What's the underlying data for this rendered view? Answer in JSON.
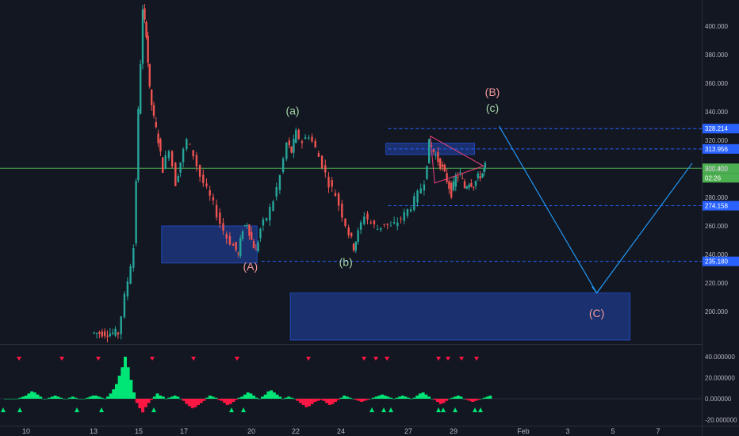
{
  "chart_data": [
    {
      "type": "candlestick",
      "title": "",
      "xlabel": "",
      "ylabel": "",
      "ylim": [
        180,
        415
      ],
      "x_ticks": [
        "10",
        "13",
        "15",
        "17",
        "20",
        "22",
        "24",
        "27",
        "29",
        "Feb",
        "3",
        "5",
        "7"
      ],
      "y_ticks": [
        "200.000",
        "220.000",
        "240.000",
        "260.000",
        "280.000",
        "300.000",
        "320.000",
        "340.000",
        "360.000",
        "380.000",
        "400.000"
      ],
      "price_path": [
        {
          "x": 0,
          "y": 0
        },
        {
          "x": 1,
          "y": 0
        },
        {
          "x": 2,
          "y": 0
        },
        {
          "x": 3,
          "y": 0
        },
        {
          "x": 4.2,
          "y": 185
        },
        {
          "x": 4.5,
          "y": 210
        },
        {
          "x": 4.9,
          "y": 245
        },
        {
          "x": 5.1,
          "y": 340
        },
        {
          "x": 5.3,
          "y": 410
        },
        {
          "x": 5.45,
          "y": 395
        },
        {
          "x": 5.6,
          "y": 355
        },
        {
          "x": 5.8,
          "y": 335
        },
        {
          "x": 6.0,
          "y": 320
        },
        {
          "x": 6.2,
          "y": 300
        },
        {
          "x": 6.5,
          "y": 315
        },
        {
          "x": 6.8,
          "y": 290
        },
        {
          "x": 7.0,
          "y": 305
        },
        {
          "x": 7.3,
          "y": 320
        },
        {
          "x": 7.6,
          "y": 310
        },
        {
          "x": 7.9,
          "y": 295
        },
        {
          "x": 8.2,
          "y": 285
        },
        {
          "x": 8.5,
          "y": 275
        },
        {
          "x": 8.8,
          "y": 262
        },
        {
          "x": 9.1,
          "y": 252
        },
        {
          "x": 9.4,
          "y": 246
        },
        {
          "x": 9.6,
          "y": 240
        },
        {
          "x": 9.8,
          "y": 258
        },
        {
          "x": 10.0,
          "y": 262
        },
        {
          "x": 10.2,
          "y": 250
        },
        {
          "x": 10.4,
          "y": 242
        },
        {
          "x": 10.6,
          "y": 258
        },
        {
          "x": 10.9,
          "y": 266
        },
        {
          "x": 11.2,
          "y": 278
        },
        {
          "x": 11.5,
          "y": 295
        },
        {
          "x": 11.8,
          "y": 318
        },
        {
          "x": 12.0,
          "y": 312
        },
        {
          "x": 12.2,
          "y": 325
        },
        {
          "x": 12.5,
          "y": 319
        },
        {
          "x": 12.8,
          "y": 324
        },
        {
          "x": 13.1,
          "y": 314
        },
        {
          "x": 13.4,
          "y": 303
        },
        {
          "x": 13.7,
          "y": 290
        },
        {
          "x": 14.0,
          "y": 282
        },
        {
          "x": 14.3,
          "y": 268
        },
        {
          "x": 14.6,
          "y": 255
        },
        {
          "x": 14.8,
          "y": 245
        },
        {
          "x": 15.0,
          "y": 255
        },
        {
          "x": 15.3,
          "y": 268
        },
        {
          "x": 15.6,
          "y": 262
        },
        {
          "x": 15.9,
          "y": 258
        },
        {
          "x": 16.2,
          "y": 262
        },
        {
          "x": 16.5,
          "y": 259
        },
        {
          "x": 16.8,
          "y": 263
        },
        {
          "x": 17.1,
          "y": 268
        },
        {
          "x": 17.4,
          "y": 274
        },
        {
          "x": 17.7,
          "y": 282
        },
        {
          "x": 18.0,
          "y": 292
        },
        {
          "x": 18.2,
          "y": 318
        },
        {
          "x": 18.4,
          "y": 312
        },
        {
          "x": 18.6,
          "y": 306
        },
        {
          "x": 18.8,
          "y": 300
        },
        {
          "x": 19.0,
          "y": 292
        },
        {
          "x": 19.2,
          "y": 283
        },
        {
          "x": 19.4,
          "y": 294
        },
        {
          "x": 19.6,
          "y": 296
        },
        {
          "x": 19.8,
          "y": 287
        },
        {
          "x": 20.0,
          "y": 291
        },
        {
          "x": 20.2,
          "y": 289
        },
        {
          "x": 20.4,
          "y": 294
        },
        {
          "x": 20.6,
          "y": 297
        },
        {
          "x": 20.7,
          "y": 302
        }
      ],
      "horizontal_levels": [
        {
          "value": 328.214,
          "label": "328.214",
          "style": "dashed",
          "color": "#2962ff"
        },
        {
          "value": 313.956,
          "label": "313.956",
          "style": "dashed",
          "color": "#2962ff"
        },
        {
          "value": 300.4,
          "label": "300.400",
          "style": "solid",
          "color": "#4caf50"
        },
        {
          "value": 274.158,
          "label": "274.158",
          "style": "dashed",
          "color": "#2962ff"
        },
        {
          "value": 235.18,
          "label": "235.180",
          "style": "dashed",
          "color": "#2962ff"
        }
      ],
      "countdown_label": "02:26",
      "zones": [
        {
          "x0": 6.1,
          "x1": 10.4,
          "y0": 234,
          "y1": 260
        },
        {
          "x0": 11.9,
          "x1": 27.2,
          "y0": 180,
          "y1": 213
        },
        {
          "x0": 16.2,
          "x1": 20.2,
          "y0": 310,
          "y1": 318
        }
      ],
      "wave_labels": [
        {
          "text": "(A)",
          "x": 10.1,
          "y": 229,
          "color": "#ef9a9a"
        },
        {
          "text": "(a)",
          "x": 12.0,
          "y": 338,
          "color": "#a5d6a7"
        },
        {
          "text": "(b)",
          "x": 14.4,
          "y": 232,
          "color": "#a5d6a7"
        },
        {
          "text": "(B)",
          "x": 21.0,
          "y": 351,
          "color": "#ef9a9a"
        },
        {
          "text": "(c)",
          "x": 21.0,
          "y": 340,
          "color": "#a5d6a7"
        },
        {
          "text": "(C)",
          "x": 25.7,
          "y": 196,
          "color": "#ef9a9a"
        }
      ],
      "projection": [
        {
          "x": 21.3,
          "y": 330
        },
        {
          "x": 25.7,
          "y": 213
        },
        {
          "x": 30.0,
          "y": 304
        }
      ]
    },
    {
      "type": "histogram",
      "ylim": [
        -20,
        43
      ],
      "y_ticks": [
        "40.000000",
        "20.000000",
        "0.000000",
        "-20.000000"
      ],
      "values": [
        0,
        0,
        0,
        0,
        0,
        1,
        2,
        3,
        5,
        7,
        6,
        4,
        2,
        0,
        0,
        1,
        2,
        3,
        2,
        1,
        0,
        0,
        1,
        2,
        1,
        0,
        0,
        0,
        1,
        2,
        3,
        3,
        2,
        1,
        0,
        2,
        5,
        9,
        14,
        22,
        30,
        40,
        30,
        18,
        6,
        -4,
        -9,
        -13,
        -8,
        -4,
        -1,
        2,
        5,
        3,
        2,
        0,
        1,
        2,
        3,
        2,
        0,
        -2,
        -5,
        -7,
        -9,
        -8,
        -6,
        -4,
        -2,
        1,
        3,
        2,
        1,
        -1,
        -2,
        -4,
        -6,
        -5,
        -3,
        -1,
        1,
        2,
        4,
        6,
        5,
        3,
        1,
        0,
        2,
        4,
        7,
        8,
        6,
        4,
        2,
        0,
        1,
        2,
        1,
        0,
        -2,
        -4,
        -6,
        -8,
        -7,
        -5,
        -3,
        -2,
        -1,
        -2,
        -4,
        -6,
        -5,
        -3,
        -1,
        1,
        3,
        2,
        1,
        0,
        -1,
        -2,
        -3,
        -2,
        -1,
        0,
        1,
        2,
        3,
        4,
        3,
        2,
        1,
        0,
        1,
        2,
        3,
        2,
        1,
        0,
        1,
        3,
        5,
        6,
        4,
        2,
        0,
        -1,
        -3,
        -5,
        -4,
        -2,
        0,
        1,
        2,
        3,
        2,
        0,
        -1,
        -2,
        -3,
        -2,
        -1,
        0,
        1,
        2,
        3
      ]
    }
  ]
}
